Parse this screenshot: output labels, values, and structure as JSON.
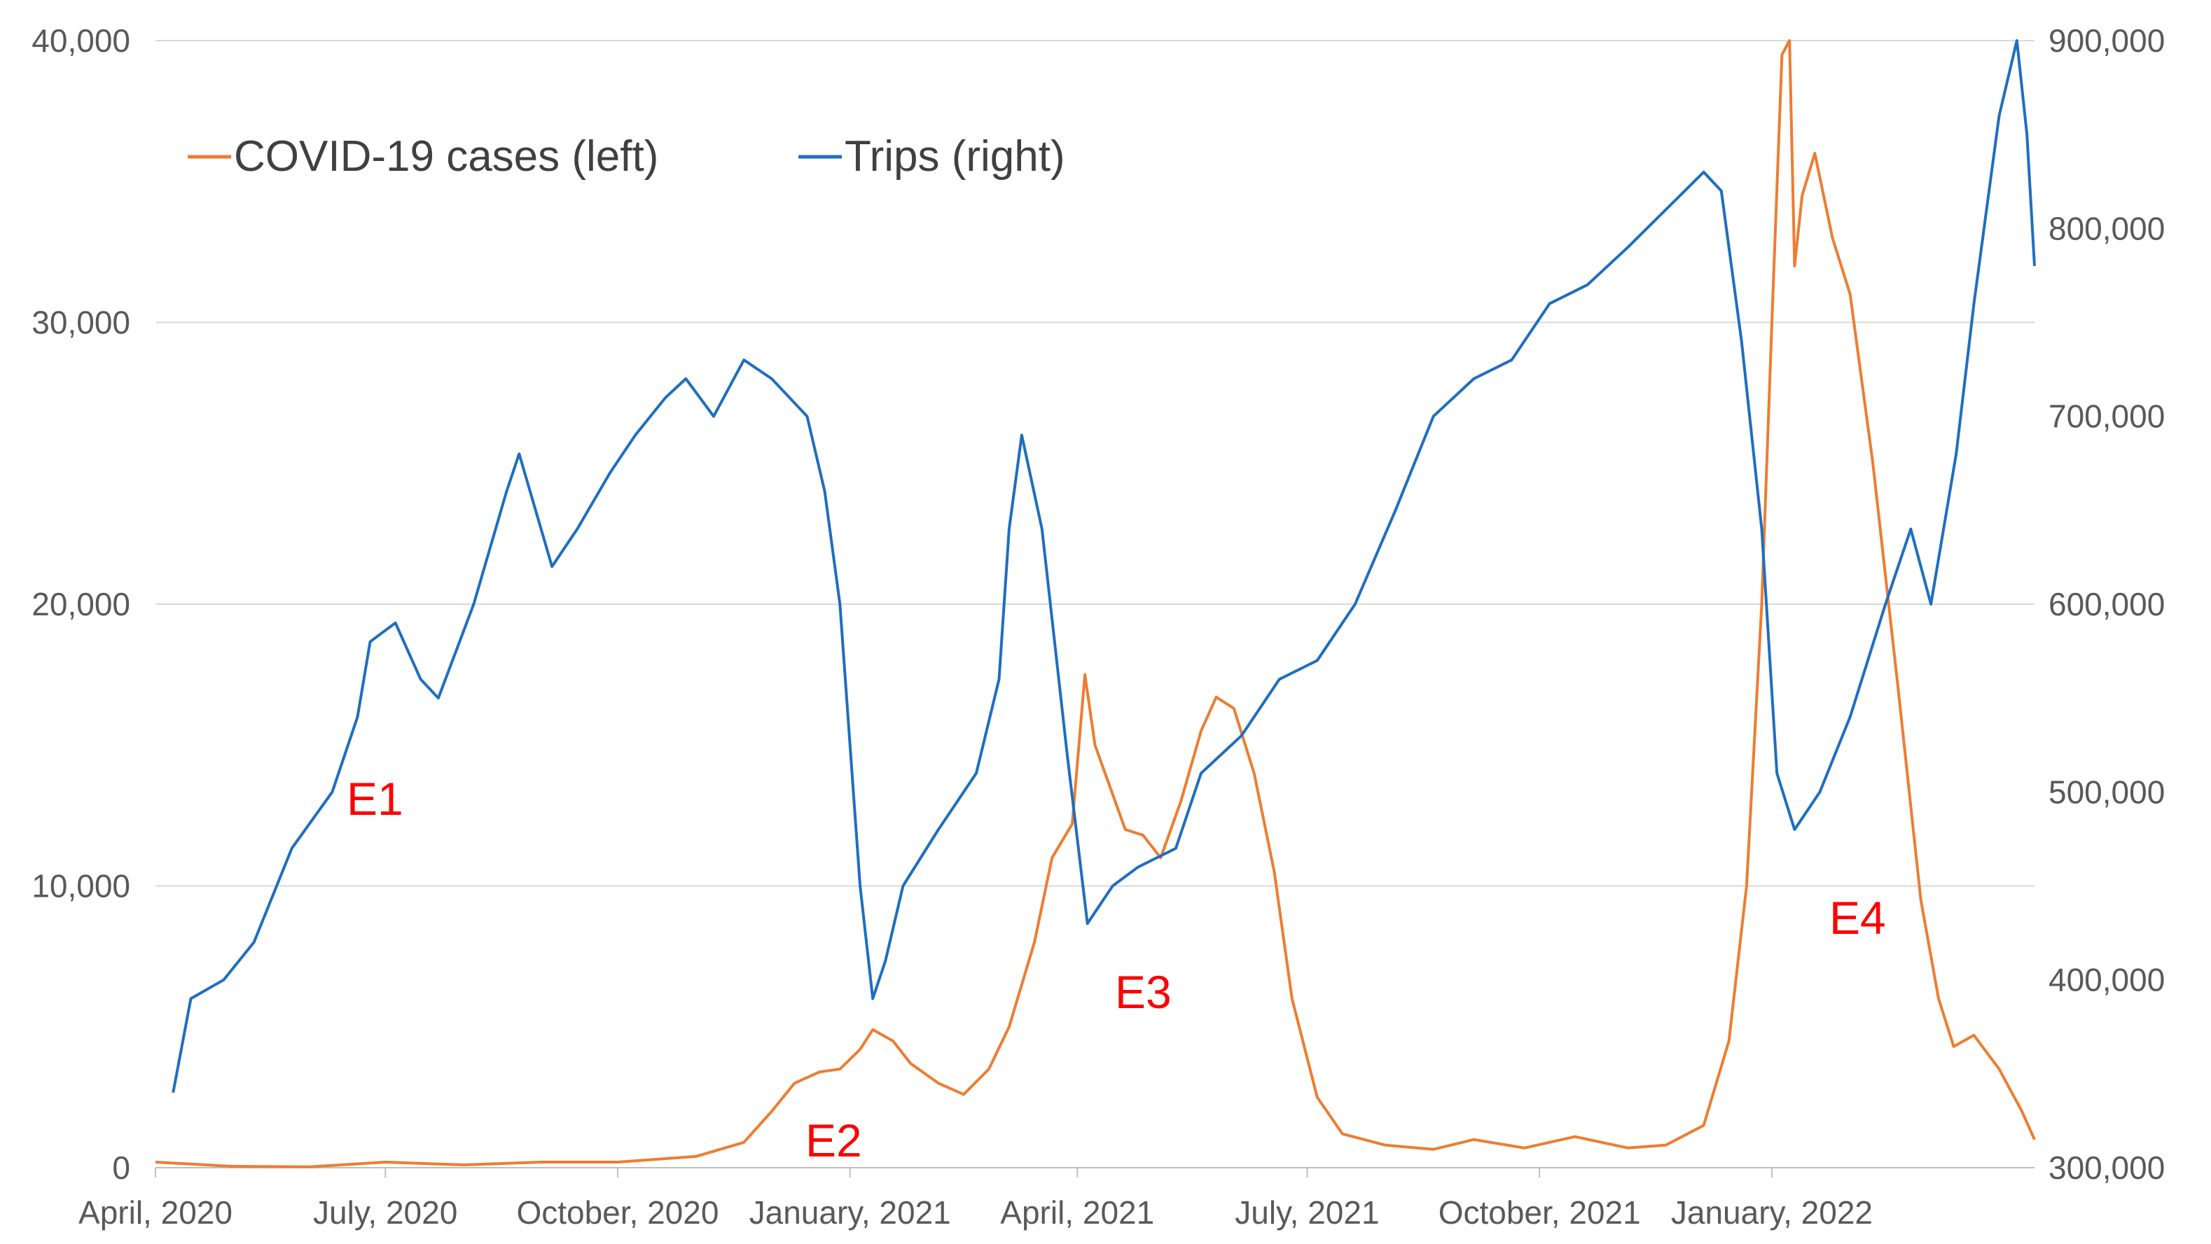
{
  "chart_data": {
    "type": "line",
    "x_tick_labels": [
      "April, 2020",
      "July, 2020",
      "October, 2020",
      "January, 2021",
      "April, 2021",
      "July, 2021",
      "October, 2021",
      "January, 2022"
    ],
    "x_range": [
      "2020-04-01",
      "2022-04-15"
    ],
    "y_left": {
      "range": [
        0,
        40000
      ],
      "ticks": [
        0,
        10000,
        20000,
        30000,
        40000
      ],
      "tick_labels": [
        "0",
        "10,000",
        "20,000",
        "30,000",
        "40,000"
      ]
    },
    "y_right": {
      "range": [
        300000,
        900000
      ],
      "ticks": [
        300000,
        400000,
        500000,
        600000,
        700000,
        800000,
        900000
      ],
      "tick_labels": [
        "300,000",
        "400,000",
        "500,000",
        "600,000",
        "700,000",
        "800,000",
        "900,000"
      ]
    },
    "grid": "horizontal",
    "legend_position": "top-left",
    "series": [
      {
        "name": "COVID-19 cases (left)",
        "axis": "left",
        "color": "#ed7d31",
        "points": [
          [
            "2020-04-01",
            200
          ],
          [
            "2020-05-01",
            50
          ],
          [
            "2020-06-01",
            30
          ],
          [
            "2020-07-01",
            200
          ],
          [
            "2020-08-01",
            100
          ],
          [
            "2020-09-01",
            200
          ],
          [
            "2020-10-01",
            200
          ],
          [
            "2020-11-01",
            400
          ],
          [
            "2020-11-20",
            900
          ],
          [
            "2020-12-01",
            2000
          ],
          [
            "2020-12-10",
            3000
          ],
          [
            "2020-12-20",
            3400
          ],
          [
            "2020-12-28",
            3500
          ],
          [
            "2021-01-05",
            4200
          ],
          [
            "2021-01-10",
            4900
          ],
          [
            "2021-01-18",
            4500
          ],
          [
            "2021-01-25",
            3700
          ],
          [
            "2021-02-05",
            3000
          ],
          [
            "2021-02-15",
            2600
          ],
          [
            "2021-02-25",
            3500
          ],
          [
            "2021-03-05",
            5000
          ],
          [
            "2021-03-15",
            8000
          ],
          [
            "2021-03-22",
            11000
          ],
          [
            "2021-03-30",
            12200
          ],
          [
            "2021-04-04",
            17500
          ],
          [
            "2021-04-08",
            15000
          ],
          [
            "2021-04-14",
            13500
          ],
          [
            "2021-04-20",
            12000
          ],
          [
            "2021-04-27",
            11800
          ],
          [
            "2021-05-04",
            11000
          ],
          [
            "2021-05-12",
            13000
          ],
          [
            "2021-05-20",
            15500
          ],
          [
            "2021-05-26",
            16700
          ],
          [
            "2021-06-02",
            16300
          ],
          [
            "2021-06-10",
            14000
          ],
          [
            "2021-06-18",
            10500
          ],
          [
            "2021-06-25",
            6000
          ],
          [
            "2021-07-05",
            2500
          ],
          [
            "2021-07-15",
            1200
          ],
          [
            "2021-08-01",
            800
          ],
          [
            "2021-08-20",
            650
          ],
          [
            "2021-09-05",
            1000
          ],
          [
            "2021-09-25",
            700
          ],
          [
            "2021-10-15",
            1100
          ],
          [
            "2021-11-05",
            700
          ],
          [
            "2021-11-20",
            800
          ],
          [
            "2021-12-05",
            1500
          ],
          [
            "2021-12-15",
            4500
          ],
          [
            "2021-12-22",
            10000
          ],
          [
            "2021-12-28",
            20000
          ],
          [
            "2022-01-01",
            30000
          ],
          [
            "2022-01-05",
            39500
          ],
          [
            "2022-01-08",
            40000
          ],
          [
            "2022-01-10",
            32000
          ],
          [
            "2022-01-13",
            34500
          ],
          [
            "2022-01-18",
            36000
          ],
          [
            "2022-01-25",
            33000
          ],
          [
            "2022-02-01",
            31000
          ],
          [
            "2022-02-10",
            25000
          ],
          [
            "2022-02-20",
            17000
          ],
          [
            "2022-03-01",
            9500
          ],
          [
            "2022-03-08",
            6000
          ],
          [
            "2022-03-14",
            4300
          ],
          [
            "2022-03-22",
            4700
          ],
          [
            "2022-04-01",
            3500
          ],
          [
            "2022-04-10",
            2000
          ],
          [
            "2022-04-15",
            1000
          ]
        ]
      },
      {
        "name": "Trips (right)",
        "axis": "right",
        "color": "#1f6ebf",
        "points": [
          [
            "2020-04-08",
            340000
          ],
          [
            "2020-04-15",
            390000
          ],
          [
            "2020-04-28",
            400000
          ],
          [
            "2020-05-10",
            420000
          ],
          [
            "2020-05-25",
            470000
          ],
          [
            "2020-06-10",
            500000
          ],
          [
            "2020-06-20",
            540000
          ],
          [
            "2020-06-25",
            580000
          ],
          [
            "2020-07-05",
            590000
          ],
          [
            "2020-07-15",
            560000
          ],
          [
            "2020-07-22",
            550000
          ],
          [
            "2020-08-05",
            600000
          ],
          [
            "2020-08-18",
            660000
          ],
          [
            "2020-08-23",
            680000
          ],
          [
            "2020-09-05",
            620000
          ],
          [
            "2020-09-15",
            640000
          ],
          [
            "2020-09-28",
            670000
          ],
          [
            "2020-10-08",
            690000
          ],
          [
            "2020-10-20",
            710000
          ],
          [
            "2020-10-28",
            720000
          ],
          [
            "2020-11-08",
            700000
          ],
          [
            "2020-11-20",
            730000
          ],
          [
            "2020-12-01",
            720000
          ],
          [
            "2020-12-15",
            700000
          ],
          [
            "2020-12-22",
            660000
          ],
          [
            "2020-12-28",
            600000
          ],
          [
            "2021-01-05",
            450000
          ],
          [
            "2021-01-10",
            390000
          ],
          [
            "2021-01-15",
            410000
          ],
          [
            "2021-01-22",
            450000
          ],
          [
            "2021-02-05",
            480000
          ],
          [
            "2021-02-20",
            510000
          ],
          [
            "2021-03-01",
            560000
          ],
          [
            "2021-03-05",
            640000
          ],
          [
            "2021-03-10",
            690000
          ],
          [
            "2021-03-18",
            640000
          ],
          [
            "2021-03-28",
            520000
          ],
          [
            "2021-04-05",
            430000
          ],
          [
            "2021-04-15",
            450000
          ],
          [
            "2021-04-25",
            460000
          ],
          [
            "2021-05-10",
            470000
          ],
          [
            "2021-05-20",
            510000
          ],
          [
            "2021-06-05",
            530000
          ],
          [
            "2021-06-20",
            560000
          ],
          [
            "2021-07-05",
            570000
          ],
          [
            "2021-07-20",
            600000
          ],
          [
            "2021-08-05",
            650000
          ],
          [
            "2021-08-20",
            700000
          ],
          [
            "2021-09-05",
            720000
          ],
          [
            "2021-09-20",
            730000
          ],
          [
            "2021-10-05",
            760000
          ],
          [
            "2021-10-20",
            770000
          ],
          [
            "2021-11-05",
            790000
          ],
          [
            "2021-11-20",
            810000
          ],
          [
            "2021-12-05",
            830000
          ],
          [
            "2021-12-12",
            820000
          ],
          [
            "2021-12-20",
            740000
          ],
          [
            "2021-12-28",
            640000
          ],
          [
            "2022-01-03",
            510000
          ],
          [
            "2022-01-10",
            480000
          ],
          [
            "2022-01-20",
            500000
          ],
          [
            "2022-02-01",
            540000
          ],
          [
            "2022-02-15",
            600000
          ],
          [
            "2022-02-25",
            640000
          ],
          [
            "2022-03-05",
            600000
          ],
          [
            "2022-03-15",
            680000
          ],
          [
            "2022-03-22",
            760000
          ],
          [
            "2022-04-01",
            860000
          ],
          [
            "2022-04-08",
            900000
          ],
          [
            "2022-04-12",
            850000
          ],
          [
            "2022-04-15",
            780000
          ]
        ]
      }
    ],
    "annotations": [
      "E1",
      "E2",
      "E3",
      "E4"
    ]
  }
}
